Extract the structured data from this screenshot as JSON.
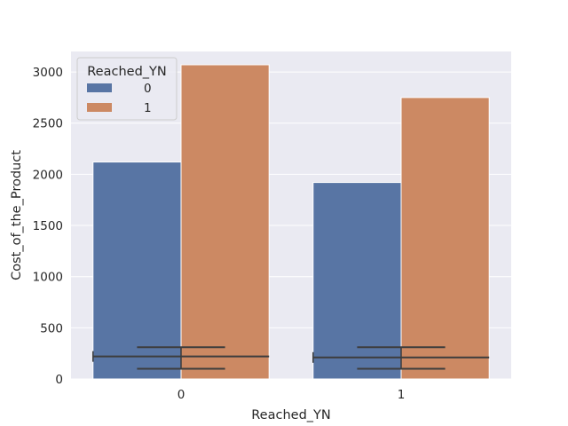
{
  "chart_data": {
    "type": "bar",
    "title": "",
    "xlabel": "Reached_YN",
    "ylabel": "Cost_of_the_Product",
    "categories": [
      "0",
      "1"
    ],
    "ylim": [
      0,
      3200
    ],
    "yticks": [
      0,
      500,
      1000,
      1500,
      2000,
      2500,
      3000
    ],
    "grid": true,
    "legend": {
      "title": "Reached_YN",
      "placement": "top-left"
    },
    "series": [
      {
        "name": "0",
        "color": "#5875a4",
        "values": [
          2120,
          1920
        ]
      },
      {
        "name": "1",
        "color": "#cc8963",
        "values": [
          3070,
          2750
        ]
      }
    ],
    "error_bars": [
      {
        "category": "0",
        "center": 220,
        "whisker_low": 100,
        "whisker_high": 310
      },
      {
        "category": "1",
        "center": 210,
        "whisker_low": 100,
        "whisker_high": 310
      }
    ]
  },
  "colors": {
    "plot_background": "#eaeaf2",
    "grid": "#ffffff",
    "error_bar": "#3d3d3d"
  }
}
